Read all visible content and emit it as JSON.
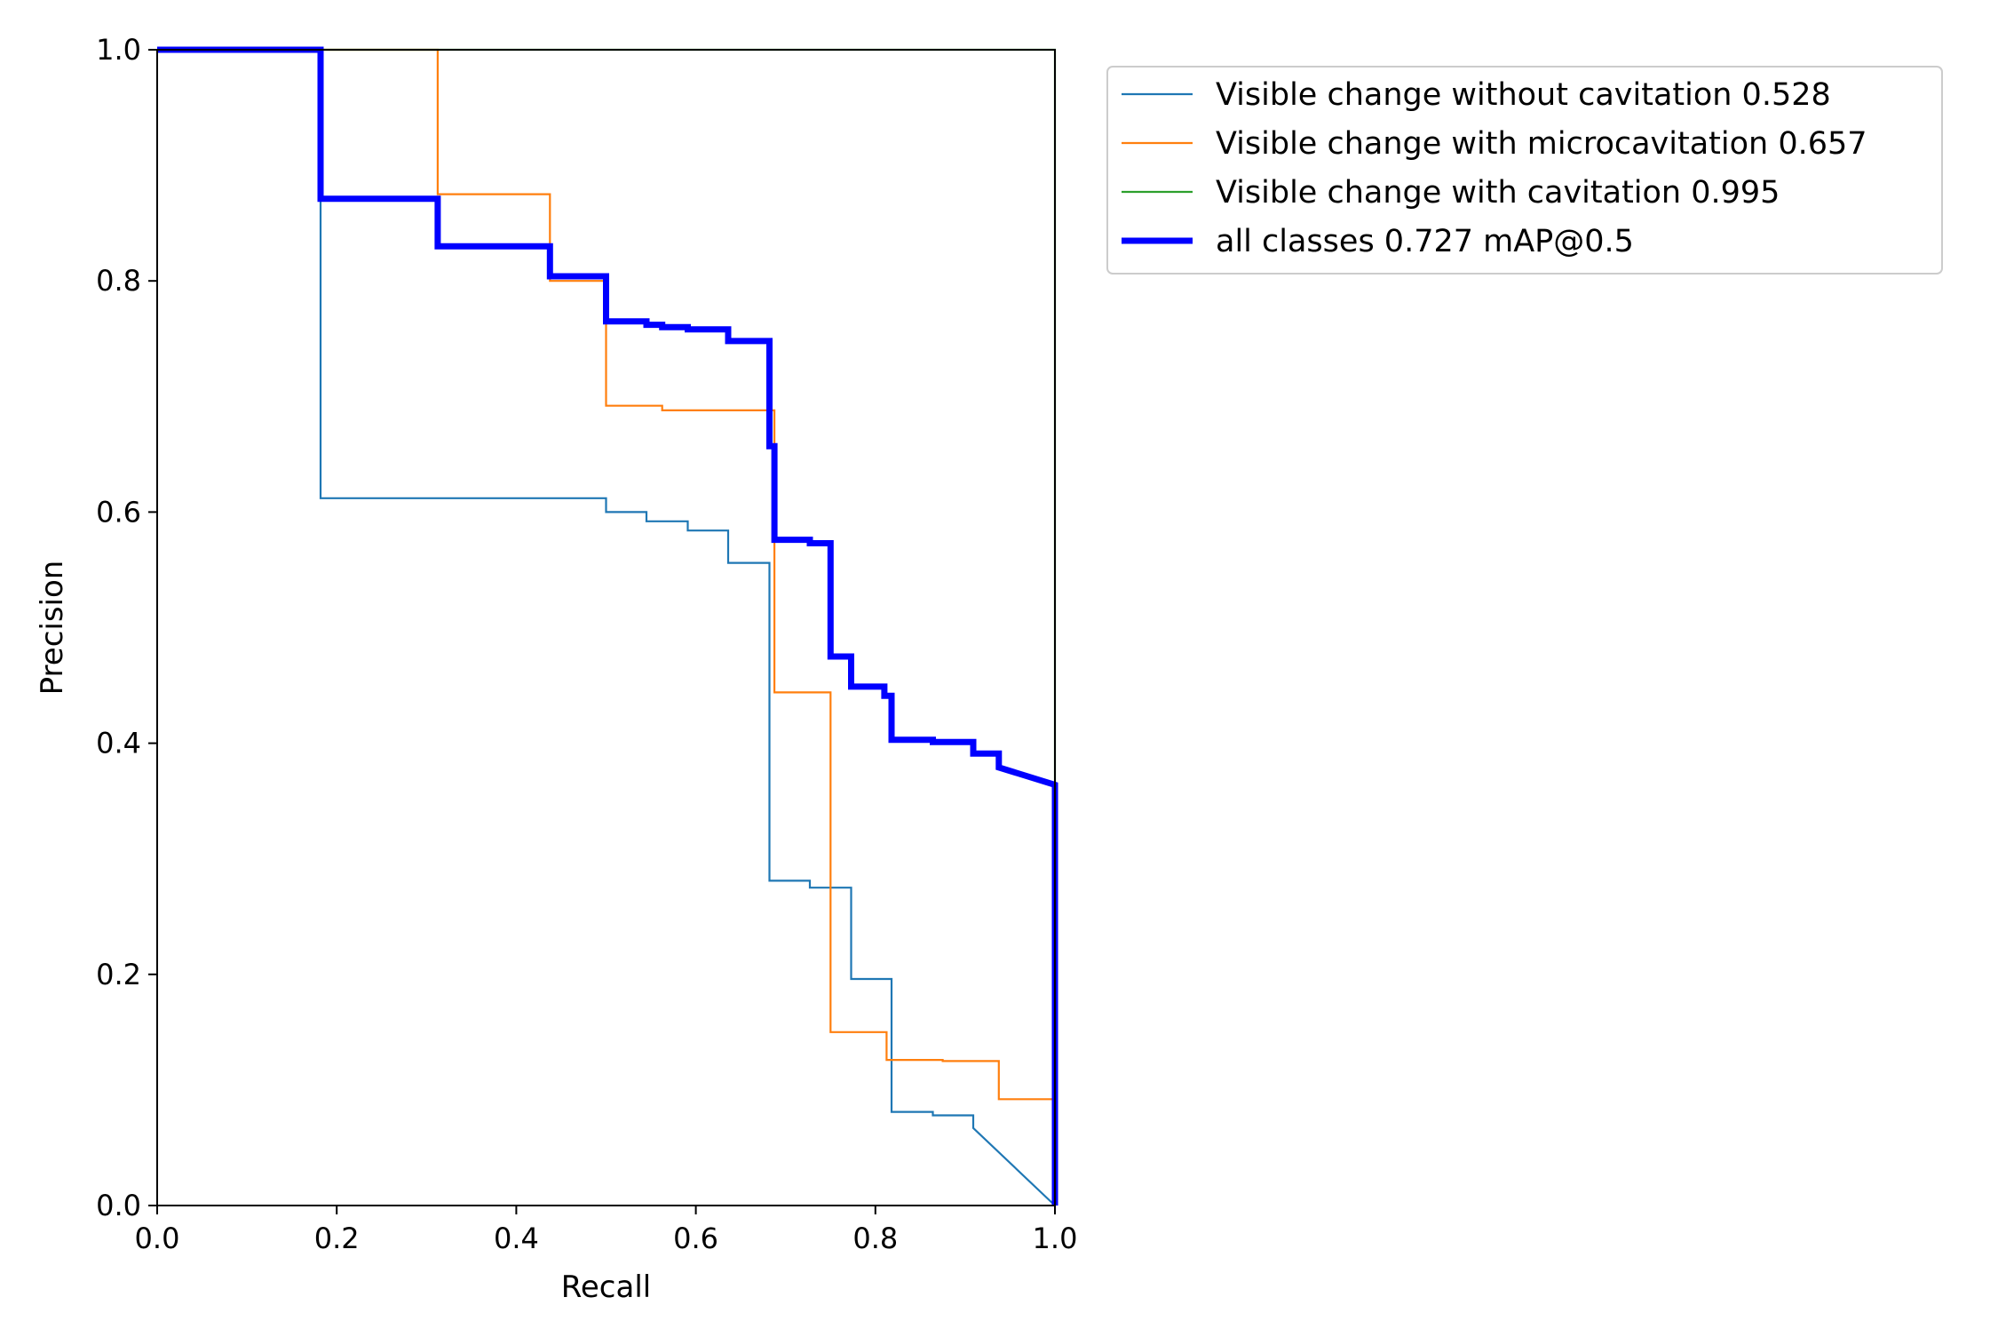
{
  "chart_data": {
    "type": "line",
    "title": "",
    "xlabel": "Recall",
    "ylabel": "Precision",
    "xlim": [
      0.0,
      1.0
    ],
    "ylim": [
      0.0,
      1.0
    ],
    "xticks": [
      "0.0",
      "0.2",
      "0.4",
      "0.6",
      "0.8",
      "1.0"
    ],
    "yticks": [
      "0.0",
      "0.2",
      "0.4",
      "0.6",
      "0.8",
      "1.0"
    ],
    "grid": false,
    "legend_position": "outside-top-right",
    "series": [
      {
        "name": "Visible change without cavitation 0.528",
        "color": "#1f77b4",
        "x": [
          0.0,
          0.182,
          0.182,
          0.182,
          0.5,
          0.5,
          0.545,
          0.545,
          0.591,
          0.591,
          0.636,
          0.636,
          0.682,
          0.682,
          0.727,
          0.727,
          0.773,
          0.773,
          0.818,
          0.818,
          0.864,
          0.864,
          0.909,
          0.909,
          1.0
        ],
        "y": [
          1.0,
          1.0,
          0.87,
          0.612,
          0.612,
          0.6,
          0.6,
          0.592,
          0.592,
          0.584,
          0.584,
          0.556,
          0.556,
          0.281,
          0.281,
          0.275,
          0.275,
          0.196,
          0.196,
          0.081,
          0.081,
          0.078,
          0.078,
          0.067,
          0.0
        ]
      },
      {
        "name": "Visible change with microcavitation 0.657",
        "color": "#ff7f0e",
        "x": [
          0.0,
          0.3125,
          0.3125,
          0.4375,
          0.4375,
          0.5,
          0.5,
          0.5625,
          0.5625,
          0.6875,
          0.6875,
          0.75,
          0.75,
          0.8125,
          0.8125,
          0.875,
          0.875,
          0.9375,
          0.9375,
          1.0,
          1.0
        ],
        "y": [
          1.0,
          1.0,
          0.875,
          0.875,
          0.8,
          0.8,
          0.692,
          0.692,
          0.688,
          0.688,
          0.444,
          0.444,
          0.15,
          0.15,
          0.126,
          0.126,
          0.125,
          0.125,
          0.092,
          0.092,
          0.0
        ]
      },
      {
        "name": "Visible change with cavitation 0.995",
        "color": "#2ca02c",
        "x": [
          0.0,
          1.0,
          1.0
        ],
        "y": [
          1.0,
          1.0,
          0.0
        ]
      },
      {
        "name": "all classes 0.727 mAP@0.5",
        "color": "#0000ff",
        "x": [
          0.0,
          0.182,
          0.182,
          0.3125,
          0.3125,
          0.4375,
          0.4375,
          0.5,
          0.5,
          0.545,
          0.545,
          0.5625,
          0.5625,
          0.591,
          0.591,
          0.636,
          0.636,
          0.682,
          0.682,
          0.6875,
          0.6875,
          0.727,
          0.727,
          0.75,
          0.75,
          0.773,
          0.773,
          0.81,
          0.81,
          0.818,
          0.818,
          0.864,
          0.864,
          0.909,
          0.909,
          0.9375,
          0.9375,
          1.0,
          1.0
        ],
        "y": [
          1.0,
          1.0,
          0.871,
          0.871,
          0.83,
          0.83,
          0.804,
          0.804,
          0.765,
          0.765,
          0.762,
          0.762,
          0.76,
          0.76,
          0.758,
          0.758,
          0.748,
          0.748,
          0.657,
          0.657,
          0.576,
          0.576,
          0.573,
          0.573,
          0.475,
          0.475,
          0.449,
          0.449,
          0.441,
          0.441,
          0.403,
          0.403,
          0.401,
          0.401,
          0.391,
          0.391,
          0.379,
          0.364,
          0.0
        ]
      }
    ]
  }
}
